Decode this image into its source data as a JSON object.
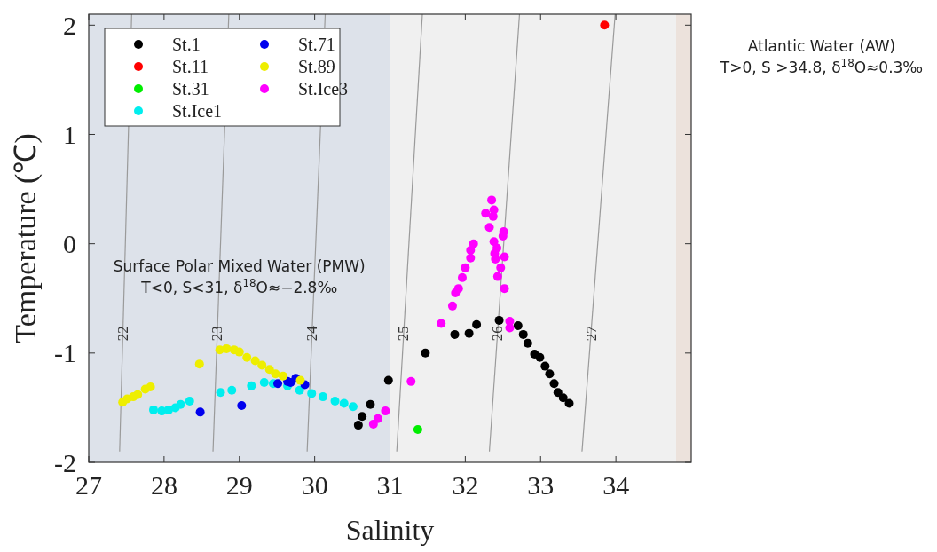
{
  "chart_data": {
    "type": "scatter",
    "xlabel": "Salinity",
    "ylabel": "Temperature (℃)",
    "xlim": [
      27,
      35
    ],
    "ylim": [
      -2,
      2.1
    ],
    "xticks": [
      27,
      28,
      29,
      30,
      31,
      32,
      33,
      34
    ],
    "yticks": [
      -2,
      -1,
      0,
      1,
      2
    ],
    "grid": false,
    "legend": "top left",
    "marker": "circle",
    "bands": [
      {
        "axis": "x",
        "from": 27,
        "to": 31,
        "color": "#dde2ea",
        "label": "Surface Polar Mixed Water (PMW)\nT<0, S<31, δ$^{18}$O≈−2.8‰"
      },
      {
        "axis": "x",
        "from": 34.8,
        "to": 35,
        "color": "#ece2dc",
        "label": "Atlantic Water (AW)\nT>0, S >34.8, δ$^{18}$O≈0.3‰"
      }
    ],
    "series": [
      {
        "name": "22",
        "type": "line",
        "marker": "none",
        "color": "#9a9a9a",
        "x": [
          27.41,
          27.57
        ],
        "values": [
          -1.9,
          2.1
        ]
      },
      {
        "name": "23",
        "type": "line",
        "marker": "none",
        "color": "#9a9a9a",
        "x": [
          28.65,
          28.86
        ],
        "values": [
          -1.9,
          2.1
        ]
      },
      {
        "name": "24",
        "type": "line",
        "marker": "none",
        "color": "#9a9a9a",
        "x": [
          29.9,
          30.14
        ],
        "values": [
          -1.9,
          2.1
        ]
      },
      {
        "name": "25",
        "type": "line",
        "marker": "none",
        "color": "#9a9a9a",
        "x": [
          31.09,
          31.43
        ],
        "values": [
          -1.9,
          2.1
        ]
      },
      {
        "name": "26",
        "type": "line",
        "marker": "none",
        "color": "#9a9a9a",
        "x": [
          32.32,
          32.72
        ],
        "values": [
          -1.9,
          2.1
        ]
      },
      {
        "name": "27",
        "type": "line",
        "marker": "none",
        "color": "#9a9a9a",
        "x": [
          33.55,
          33.99
        ],
        "values": [
          -1.9,
          2.1
        ]
      },
      {
        "name": "St.1",
        "color": "#000000",
        "x": [
          30.58,
          30.63,
          30.74,
          30.98,
          31.47,
          31.86,
          32.05,
          32.15,
          32.45,
          32.7,
          32.77,
          32.83,
          32.92,
          32.99,
          33.06,
          33.12,
          33.18,
          33.23,
          33.3,
          33.38
        ],
        "values": [
          -1.66,
          -1.58,
          -1.47,
          -1.25,
          -1.0,
          -0.83,
          -0.82,
          -0.74,
          -0.7,
          -0.75,
          -0.83,
          -0.91,
          -1.01,
          -1.04,
          -1.12,
          -1.19,
          -1.28,
          -1.36,
          -1.41,
          -1.46
        ]
      },
      {
        "name": "St.11",
        "color": "#ff0000",
        "x": [
          33.85
        ],
        "values": [
          2.0
        ]
      },
      {
        "name": "St.31",
        "color": "#00ee00",
        "x": [
          31.37
        ],
        "values": [
          -1.7
        ]
      },
      {
        "name": "St.Ice1",
        "color": "#00eeee",
        "x": [
          27.86,
          27.97,
          28.06,
          28.15,
          28.22,
          28.34,
          28.75,
          28.9,
          29.16,
          29.33,
          29.45,
          29.64,
          29.8,
          29.96,
          30.11,
          30.27,
          30.39,
          30.51
        ],
        "values": [
          -1.52,
          -1.53,
          -1.52,
          -1.5,
          -1.47,
          -1.44,
          -1.36,
          -1.34,
          -1.3,
          -1.27,
          -1.28,
          -1.3,
          -1.34,
          -1.37,
          -1.4,
          -1.44,
          -1.46,
          -1.49
        ]
      },
      {
        "name": "St.71",
        "color": "#0000ee",
        "x": [
          28.48,
          29.03,
          29.51,
          29.64,
          29.75,
          29.68,
          29.87
        ],
        "values": [
          -1.54,
          -1.48,
          -1.28,
          -1.26,
          -1.23,
          -1.27,
          -1.29
        ]
      },
      {
        "name": "St.89",
        "color": "#eeee00",
        "x": [
          27.45,
          27.51,
          27.59,
          27.65,
          27.75,
          27.82,
          28.47,
          28.74,
          28.83,
          28.93,
          29.0,
          29.1,
          29.21,
          29.3,
          29.4,
          29.48,
          29.58,
          29.81
        ],
        "values": [
          -1.45,
          -1.42,
          -1.4,
          -1.38,
          -1.33,
          -1.31,
          -1.1,
          -0.97,
          -0.96,
          -0.97,
          -0.99,
          -1.04,
          -1.07,
          -1.11,
          -1.15,
          -1.19,
          -1.21,
          -1.25
        ]
      },
      {
        "name": "St.Ice3",
        "color": "#ff00ff",
        "x": [
          30.78,
          30.84,
          30.94,
          31.28,
          31.68,
          31.83,
          31.87,
          31.91,
          31.96,
          32.0,
          32.07,
          32.07,
          32.11,
          32.32,
          32.27,
          32.35,
          32.38,
          32.37,
          32.38,
          32.42,
          32.39,
          32.4,
          32.43,
          32.47,
          32.52,
          32.5,
          32.51,
          32.52,
          32.59,
          32.59
        ],
        "values": [
          -1.65,
          -1.6,
          -1.53,
          -1.26,
          -0.73,
          -0.57,
          -0.45,
          -0.41,
          -0.31,
          -0.22,
          -0.13,
          -0.06,
          0.0,
          0.15,
          0.28,
          0.4,
          0.31,
          0.25,
          0.02,
          -0.04,
          -0.09,
          -0.14,
          -0.3,
          -0.22,
          -0.12,
          0.07,
          0.11,
          -0.41,
          -0.71,
          -0.77
        ]
      }
    ]
  }
}
